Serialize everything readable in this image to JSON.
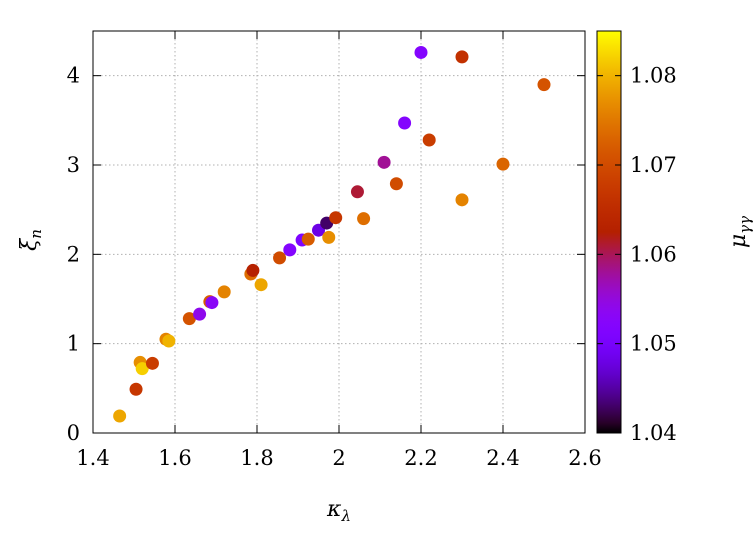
{
  "chart_data": {
    "type": "scatter",
    "title": "",
    "xlabel": "κλ",
    "ylabel": "ξn",
    "xlim": [
      1.4,
      2.6
    ],
    "ylim": [
      0,
      4.5
    ],
    "xticks": [
      "1.4",
      "1.6",
      "1.8",
      "2",
      "2.2",
      "2.4",
      "2.6"
    ],
    "yticks": [
      "0",
      "1",
      "2",
      "3",
      "4"
    ],
    "grid": true,
    "colorbar": {
      "label": "μγγ",
      "range": [
        1.04,
        1.085
      ],
      "ticks": [
        "1.04",
        "1.05",
        "1.06",
        "1.07",
        "1.08"
      ],
      "colormap": "gnuplot-pm3d"
    },
    "points": [
      {
        "x": 1.465,
        "y": 0.19,
        "c": 1.079
      },
      {
        "x": 1.505,
        "y": 0.49,
        "c": 1.067
      },
      {
        "x": 1.515,
        "y": 0.79,
        "c": 1.077
      },
      {
        "x": 1.52,
        "y": 0.72,
        "c": 1.082
      },
      {
        "x": 1.545,
        "y": 0.78,
        "c": 1.068
      },
      {
        "x": 1.578,
        "y": 1.05,
        "c": 1.076
      },
      {
        "x": 1.585,
        "y": 1.03,
        "c": 1.08
      },
      {
        "x": 1.635,
        "y": 1.28,
        "c": 1.071
      },
      {
        "x": 1.66,
        "y": 1.33,
        "c": 1.054
      },
      {
        "x": 1.685,
        "y": 1.47,
        "c": 1.072
      },
      {
        "x": 1.69,
        "y": 1.46,
        "c": 1.053
      },
      {
        "x": 1.72,
        "y": 1.58,
        "c": 1.076
      },
      {
        "x": 1.785,
        "y": 1.78,
        "c": 1.074
      },
      {
        "x": 1.79,
        "y": 1.82,
        "c": 1.063
      },
      {
        "x": 1.81,
        "y": 1.66,
        "c": 1.079
      },
      {
        "x": 1.855,
        "y": 1.96,
        "c": 1.07
      },
      {
        "x": 1.88,
        "y": 2.05,
        "c": 1.052
      },
      {
        "x": 1.91,
        "y": 2.16,
        "c": 1.051
      },
      {
        "x": 1.925,
        "y": 2.17,
        "c": 1.072
      },
      {
        "x": 1.95,
        "y": 2.27,
        "c": 1.048
      },
      {
        "x": 1.97,
        "y": 2.35,
        "c": 1.043
      },
      {
        "x": 1.975,
        "y": 2.19,
        "c": 1.077
      },
      {
        "x": 1.992,
        "y": 2.41,
        "c": 1.067
      },
      {
        "x": 2.045,
        "y": 2.7,
        "c": 1.061
      },
      {
        "x": 2.06,
        "y": 2.4,
        "c": 1.074
      },
      {
        "x": 2.11,
        "y": 3.03,
        "c": 1.058
      },
      {
        "x": 2.14,
        "y": 2.79,
        "c": 1.07
      },
      {
        "x": 2.16,
        "y": 3.47,
        "c": 1.052
      },
      {
        "x": 2.2,
        "y": 4.26,
        "c": 1.052
      },
      {
        "x": 2.22,
        "y": 3.28,
        "c": 1.068
      },
      {
        "x": 2.3,
        "y": 4.21,
        "c": 1.066
      },
      {
        "x": 2.3,
        "y": 2.61,
        "c": 1.076
      },
      {
        "x": 2.4,
        "y": 3.01,
        "c": 1.073
      },
      {
        "x": 2.5,
        "y": 3.9,
        "c": 1.071
      }
    ]
  }
}
